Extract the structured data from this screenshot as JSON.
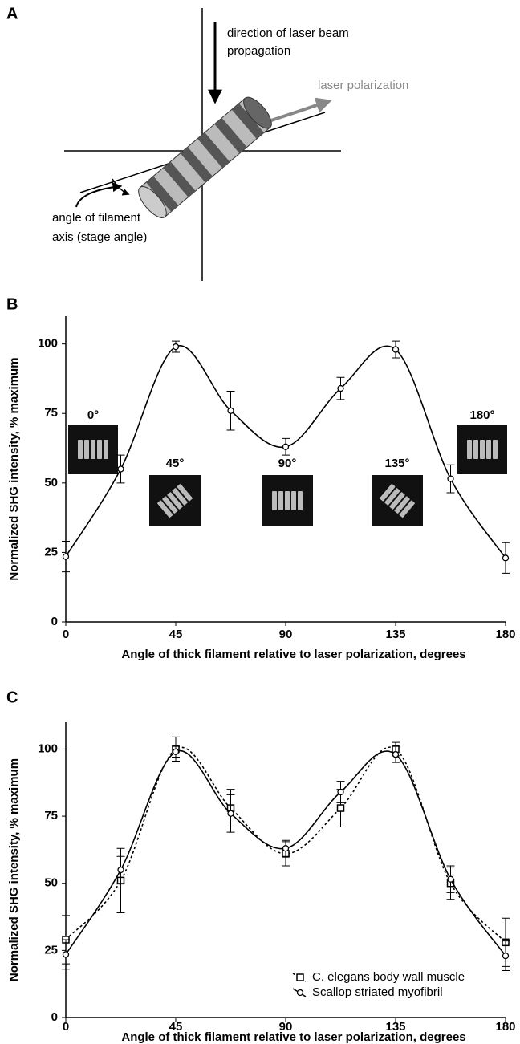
{
  "panels": [
    "A",
    "B",
    "C"
  ],
  "diagram": {
    "beam_label": [
      "direction of laser beam",
      "propagation"
    ],
    "polarization_label": "laser polarization",
    "angle_label": [
      "angle of filament",
      "axis (stage angle)"
    ]
  },
  "chart_data": [
    {
      "type": "line",
      "ylabel": "Normalized SHG intensity, % maximum",
      "xlabel": "Angle of thick filament relative to laser polarization, degrees",
      "x": [
        0,
        22.5,
        45,
        67.5,
        90,
        112.5,
        135,
        157.5,
        180
      ],
      "values": [
        23.5,
        55,
        99,
        76,
        63,
        84,
        98,
        51.5,
        23
      ],
      "errors": [
        5.5,
        5,
        2,
        7,
        3,
        4,
        3,
        5,
        5.5
      ],
      "color": "#000000",
      "marker": "circle",
      "line_style": "solid",
      "annotations": [
        "0°",
        "45°",
        "90°",
        "135°",
        "180°"
      ],
      "xlim": [
        0,
        180
      ],
      "xticks": [
        0,
        45,
        90,
        135,
        180
      ],
      "ylim": [
        0,
        110
      ],
      "yticks": [
        0,
        25,
        50,
        75,
        100
      ],
      "grid": false
    },
    {
      "type": "line",
      "ylabel": "Normalized SHG intensity, % maximum",
      "xlabel": "Angle of thick filament relative to laser polarization, degrees",
      "x": [
        0,
        22.5,
        45,
        67.5,
        90,
        112.5,
        135,
        157.5,
        180
      ],
      "series": [
        {
          "name": "C. elegans body wall muscle",
          "color": "#000000",
          "marker": "square",
          "line_style": "dotted",
          "values": [
            29,
            51,
            100,
            78,
            61,
            78,
            100,
            50,
            28
          ],
          "errors": [
            9,
            12,
            4.5,
            7,
            4.5,
            7,
            2.5,
            6,
            9
          ]
        },
        {
          "name": "Scallop striated myofibril",
          "color": "#000000",
          "marker": "circle",
          "line_style": "solid",
          "values": [
            23.5,
            55,
            99,
            76,
            63,
            84,
            98,
            51.5,
            23
          ],
          "errors": [
            5.5,
            5,
            2,
            7,
            3,
            4,
            3,
            5,
            5.5
          ]
        }
      ],
      "legend": "lower right",
      "xlim": [
        0,
        180
      ],
      "xticks": [
        0,
        45,
        90,
        135,
        180
      ],
      "ylim": [
        0,
        110
      ],
      "yticks": [
        0,
        25,
        50,
        75,
        100
      ],
      "grid": false
    }
  ]
}
